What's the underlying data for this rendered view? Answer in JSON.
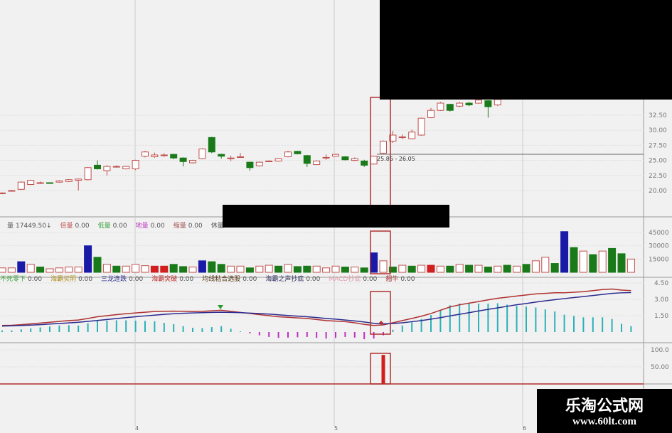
{
  "chart_data": {
    "type": "candlestick",
    "price_axis": {
      "ticks": [
        20.0,
        22.5,
        25.0,
        27.5,
        30.0,
        32.5
      ],
      "tick_labels": [
        "20.00",
        "22.50",
        "25.00",
        "27.50",
        "30.00",
        "32.50"
      ]
    },
    "price_annotation": "25.85 - 26.05",
    "ohlc": [
      [
        19.5,
        19.6,
        19.7,
        19.4
      ],
      [
        20.0,
        20.0,
        20.1,
        19.9
      ],
      [
        20.2,
        21.4,
        21.5,
        20.1
      ],
      [
        21.0,
        21.7,
        21.8,
        20.9
      ],
      [
        21.3,
        21.3,
        21.5,
        21.1
      ],
      [
        21.3,
        21.2,
        21.3,
        21.1
      ],
      [
        21.4,
        21.6,
        21.7,
        21.3
      ],
      [
        21.5,
        21.8,
        21.9,
        21.4
      ],
      [
        21.7,
        21.9,
        22.0,
        20.0
      ],
      [
        21.8,
        23.8,
        23.9,
        21.7
      ],
      [
        24.2,
        23.6,
        25.0,
        23.5
      ],
      [
        23.3,
        24.0,
        24.2,
        22.5
      ],
      [
        24.0,
        24.0,
        24.2,
        23.8
      ],
      [
        23.6,
        24.0,
        24.1,
        23.5
      ],
      [
        23.6,
        25.0,
        25.1,
        23.4
      ],
      [
        25.7,
        26.4,
        26.6,
        25.5
      ],
      [
        25.6,
        25.9,
        26.3,
        25.4
      ],
      [
        25.9,
        25.9,
        26.2,
        25.6
      ],
      [
        26.0,
        25.4,
        26.1,
        25.2
      ],
      [
        25.4,
        24.8,
        25.5,
        24.0
      ],
      [
        24.6,
        25.0,
        25.1,
        24.5
      ],
      [
        25.3,
        26.9,
        27.0,
        25.2
      ],
      [
        28.8,
        26.4,
        28.9,
        26.2
      ],
      [
        26.0,
        25.7,
        26.1,
        25.3
      ],
      [
        25.4,
        25.4,
        25.8,
        24.9
      ],
      [
        25.6,
        25.6,
        26.2,
        25.5
      ],
      [
        24.7,
        23.8,
        24.8,
        23.3
      ],
      [
        24.1,
        24.7,
        24.8,
        24.0
      ],
      [
        24.9,
        24.9,
        25.0,
        24.8
      ],
      [
        24.9,
        25.3,
        25.4,
        24.8
      ],
      [
        25.6,
        26.4,
        26.6,
        25.5
      ],
      [
        26.5,
        26.1,
        26.6,
        26.0
      ],
      [
        25.8,
        24.5,
        25.9,
        23.9
      ],
      [
        24.3,
        24.9,
        25.0,
        24.2
      ],
      [
        25.5,
        25.5,
        26.0,
        25.1
      ],
      [
        25.7,
        26.0,
        26.1,
        25.6
      ],
      [
        25.6,
        25.1,
        25.7,
        25.0
      ],
      [
        25.0,
        25.3,
        25.5,
        24.9
      ],
      [
        24.9,
        24.2,
        25.1,
        23.9
      ],
      [
        24.4,
        25.7,
        25.8,
        24.3
      ],
      [
        26.2,
        28.2,
        28.3,
        26.1
      ],
      [
        28.2,
        29.2,
        29.9,
        27.9
      ],
      [
        28.9,
        28.9,
        29.3,
        28.5
      ],
      [
        28.6,
        29.7,
        30.1,
        28.5
      ],
      [
        29.2,
        32.0,
        32.1,
        29.1
      ],
      [
        32.1,
        33.3,
        33.7,
        32.0
      ],
      [
        33.3,
        34.5,
        34.7,
        33.2
      ],
      [
        34.3,
        33.3,
        34.4,
        33.1
      ],
      [
        34.0,
        34.5,
        34.7,
        33.8
      ],
      [
        34.5,
        34.2,
        34.7,
        34.0
      ],
      [
        34.5,
        35.0,
        35.2,
        34.4
      ],
      [
        34.9,
        33.9,
        35.0,
        32.1
      ],
      [
        34.2,
        35.1,
        35.3,
        34.0
      ],
      null,
      null,
      null,
      null,
      null,
      null,
      null,
      null,
      null,
      null,
      null,
      null,
      null,
      null
    ],
    "volume_axis": {
      "ticks": [
        15000,
        30000,
        45000
      ],
      "tick_labels": [
        "15000",
        "30000",
        "45000"
      ]
    },
    "volume": [
      5000,
      5000,
      12000,
      9000,
      6000,
      4000,
      5000,
      6000,
      6000,
      30000,
      17000,
      9000,
      7000,
      7000,
      9000,
      7500,
      7000,
      7000,
      9000,
      6500,
      6000,
      13000,
      12000,
      9000,
      7000,
      7000,
      5000,
      7000,
      8000,
      7000,
      9000,
      6500,
      7000,
      7000,
      5000,
      7000,
      6000,
      6000,
      5000,
      22000,
      13000,
      6000,
      8000,
      7000,
      8000,
      8000,
      7000,
      7000,
      9000,
      8000,
      8000,
      6000,
      7000,
      8000,
      7000,
      9000,
      13000,
      17000,
      10000,
      46000,
      28000,
      24000,
      20000,
      24000,
      27000,
      21000,
      15000
    ],
    "volume_type": [
      "up",
      "up",
      "blue",
      "up",
      "down",
      "up",
      "up",
      "up",
      "up",
      "blue",
      "down",
      "up",
      "down",
      "up",
      "up",
      "up",
      "red",
      "red",
      "down",
      "down",
      "up",
      "blue",
      "down",
      "down",
      "up",
      "up",
      "down",
      "up",
      "up",
      "down",
      "up",
      "down",
      "down",
      "up",
      "up",
      "up",
      "down",
      "up",
      "down",
      "blue",
      "up",
      "down",
      "up",
      "down",
      "up",
      "red",
      "up",
      "down",
      "up",
      "down",
      "up",
      "down",
      "up",
      "down",
      "up",
      "down",
      "up",
      "up",
      "down",
      "blue",
      "down",
      "up",
      "down",
      "up",
      "down",
      "down",
      "up"
    ],
    "macd_axis": {
      "ticks": [
        1.5,
        3.0,
        4.5
      ],
      "tick_labels": [
        "1.50",
        "3.00",
        "4.50"
      ]
    },
    "dif": [
      0.6,
      0.62,
      0.68,
      0.75,
      0.82,
      0.9,
      0.98,
      1.05,
      1.1,
      1.25,
      1.4,
      1.5,
      1.6,
      1.68,
      1.75,
      1.82,
      1.88,
      1.9,
      1.92,
      1.9,
      1.88,
      1.9,
      1.95,
      2.0,
      1.9,
      1.8,
      1.7,
      1.6,
      1.5,
      1.4,
      1.35,
      1.3,
      1.25,
      1.15,
      1.05,
      1.0,
      0.95,
      0.85,
      0.7,
      0.6,
      0.65,
      0.85,
      1.05,
      1.25,
      1.45,
      1.7,
      2.0,
      2.3,
      2.5,
      2.65,
      2.8,
      2.95,
      3.1,
      3.2,
      3.3,
      3.4,
      3.5,
      3.55,
      3.6,
      3.6,
      3.65,
      3.7,
      3.8,
      3.9,
      3.95,
      3.85,
      3.8
    ],
    "dea": [
      0.55,
      0.57,
      0.6,
      0.64,
      0.68,
      0.73,
      0.78,
      0.84,
      0.9,
      0.98,
      1.06,
      1.15,
      1.24,
      1.32,
      1.4,
      1.48,
      1.55,
      1.62,
      1.68,
      1.72,
      1.75,
      1.78,
      1.8,
      1.82,
      1.8,
      1.78,
      1.74,
      1.7,
      1.65,
      1.58,
      1.52,
      1.46,
      1.4,
      1.33,
      1.25,
      1.18,
      1.1,
      1.02,
      0.92,
      0.8,
      0.75,
      0.78,
      0.85,
      0.95,
      1.05,
      1.18,
      1.32,
      1.48,
      1.63,
      1.78,
      1.93,
      2.08,
      2.22,
      2.36,
      2.5,
      2.62,
      2.75,
      2.86,
      2.97,
      3.07,
      3.16,
      3.25,
      3.35,
      3.45,
      3.55,
      3.6,
      3.62
    ],
    "signal_axis": {
      "ticks": [
        50,
        100
      ],
      "tick_labels": [
        "50.00",
        "100.0"
      ]
    },
    "signal_bar": {
      "index": 40,
      "value": 85
    },
    "x_ticks": [
      "4",
      "5",
      "6"
    ],
    "colors": {
      "up": "#c0504d",
      "down": "#1a7a1a",
      "blue": "#1a1aa8",
      "red": "#d21e1e",
      "dif": "#b03030",
      "dea": "#2a2a90",
      "hist_pos": "#2bb0b8",
      "hist_neg": "#c030c0",
      "box": "#b03030"
    }
  },
  "volume_legend": [
    {
      "label": "量",
      "value": "17449.50↓",
      "color": "#555"
    },
    {
      "label": "倍量",
      "value": "0.00",
      "color": "#c05050"
    },
    {
      "label": "低量",
      "value": "0.00",
      "color": "#3aa03a"
    },
    {
      "label": "地量",
      "value": "0.00",
      "color": "#c040c0"
    },
    {
      "label": "缩量",
      "value": "0.00",
      "color": "#a05050"
    },
    {
      "label": "休量",
      "value": "",
      "color": "#555"
    }
  ],
  "signal_legend": [
    {
      "label": "不死零下",
      "value": "0.00",
      "color": "#3aa03a"
    },
    {
      "label": "海霸买阴",
      "value": "0.00",
      "color": "#b09020"
    },
    {
      "label": "三龙连跌",
      "value": "0.00",
      "color": "#303090"
    },
    {
      "label": "海霸突破",
      "value": "0.00",
      "color": "#c03030"
    },
    {
      "label": "均线粘合选股",
      "value": "0.00",
      "color": "#503010"
    },
    {
      "label": "海霸之声抄底",
      "value": "0.00",
      "color": "#303060"
    },
    {
      "label": "MACD抄底",
      "value": "0.00",
      "color": "#e0a0b0"
    },
    {
      "label": "翘牛",
      "value": "0.00",
      "color": "#a03030"
    }
  ],
  "watermark": {
    "title": "乐淘公式网",
    "url": "www.60lt.com"
  }
}
